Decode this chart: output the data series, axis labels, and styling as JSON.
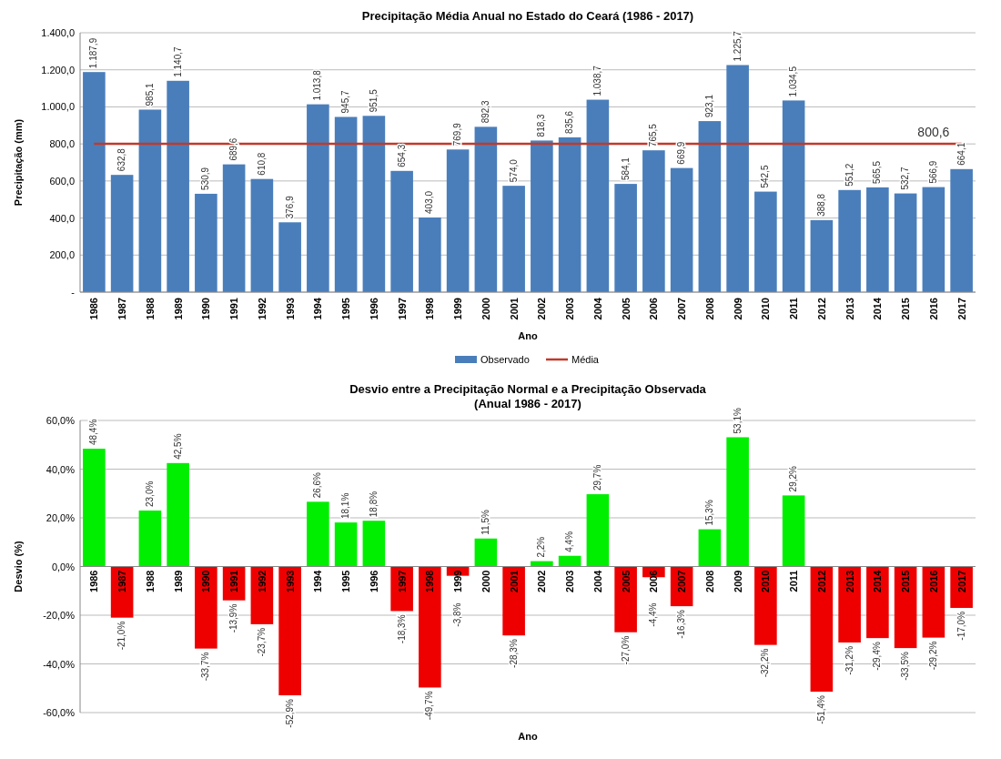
{
  "chart_data": [
    {
      "type": "bar",
      "title": "Precipitação Média Anual no Estado do Ceará (1986 - 2017)",
      "xlabel": "Ano",
      "ylabel": "Precipitação (mm)",
      "categories": [
        "1986",
        "1987",
        "1988",
        "1989",
        "1990",
        "1991",
        "1992",
        "1993",
        "1994",
        "1995",
        "1996",
        "1997",
        "1998",
        "1999",
        "2000",
        "2001",
        "2002",
        "2003",
        "2004",
        "2005",
        "2006",
        "2007",
        "2008",
        "2009",
        "2010",
        "2011",
        "2012",
        "2013",
        "2014",
        "2015",
        "2016",
        "2017"
      ],
      "series": [
        {
          "name": "Observado",
          "type": "bar",
          "color": "#4a7ebb",
          "values": [
            1187.9,
            632.8,
            985.1,
            1140.7,
            530.9,
            689.6,
            610.8,
            376.9,
            1013.8,
            945.7,
            951.5,
            654.3,
            403.0,
            769.9,
            892.3,
            574.0,
            818.3,
            835.6,
            1038.7,
            584.1,
            765.5,
            669.9,
            923.1,
            1225.7,
            542.5,
            1034.5,
            388.8,
            551.2,
            565.5,
            532.7,
            566.9,
            664.1
          ],
          "value_labels": [
            "1.187,9",
            "632,8",
            "985,1",
            "1.140,7",
            "530,9",
            "689,6",
            "610,8",
            "376,9",
            "1.013,8",
            "945,7",
            "951,5",
            "654,3",
            "403,0",
            "769,9",
            "892,3",
            "574,0",
            "818,3",
            "835,6",
            "1.038,7",
            "584,1",
            "765,5",
            "669,9",
            "923,1",
            "1.225,7",
            "542,5",
            "1.034,5",
            "388,8",
            "551,2",
            "565,5",
            "532,7",
            "566,9",
            "664,1"
          ]
        },
        {
          "name": "Média",
          "type": "line",
          "color": "#c0392b",
          "values": [
            800.6,
            800.6,
            800.6,
            800.6,
            800.6,
            800.6,
            800.6,
            800.6,
            800.6,
            800.6,
            800.6,
            800.6,
            800.6,
            800.6,
            800.6,
            800.6,
            800.6,
            800.6,
            800.6,
            800.6,
            800.6,
            800.6,
            800.6,
            800.6,
            800.6,
            800.6,
            800.6,
            800.6,
            800.6,
            800.6,
            800.6,
            800.6
          ],
          "value_labels": [
            null,
            null,
            null,
            null,
            null,
            null,
            null,
            null,
            null,
            null,
            null,
            null,
            null,
            null,
            null,
            null,
            null,
            null,
            null,
            null,
            null,
            null,
            null,
            null,
            null,
            null,
            null,
            null,
            null,
            null,
            "800,6",
            null
          ]
        }
      ],
      "ylim": [
        0,
        1400
      ],
      "yticks": [
        {
          "value": 0,
          "label": "-"
        },
        {
          "value": 200,
          "label": "200,0"
        },
        {
          "value": 400,
          "label": "400,0"
        },
        {
          "value": 600,
          "label": "600,0"
        },
        {
          "value": 800,
          "label": "800,0"
        },
        {
          "value": 1000,
          "label": "1.000,0"
        },
        {
          "value": 1200,
          "label": "1.200,0"
        },
        {
          "value": 1400,
          "label": "1.400,0"
        }
      ],
      "grid": "y",
      "legend": "bottom"
    },
    {
      "type": "bar",
      "title": "Desvio entre a Precipitação Normal e a Precipitação Observada\n(Anual 1986 - 2017)",
      "xlabel": "Ano",
      "ylabel": "Desvio (%)",
      "categories": [
        "1986",
        "1987",
        "1988",
        "1989",
        "1990",
        "1991",
        "1992",
        "1993",
        "1994",
        "1995",
        "1996",
        "1997",
        "1998",
        "1999",
        "2000",
        "2001",
        "2002",
        "2003",
        "2004",
        "2005",
        "2006",
        "2007",
        "2008",
        "2009",
        "2010",
        "2011",
        "2012",
        "2013",
        "2014",
        "2015",
        "2016",
        "2017"
      ],
      "values": [
        48.4,
        -21.0,
        23.0,
        42.5,
        -33.7,
        -13.9,
        -23.7,
        -52.9,
        26.6,
        18.1,
        18.8,
        -18.3,
        -49.7,
        -3.8,
        11.5,
        -28.3,
        2.2,
        4.4,
        29.7,
        -27.0,
        -4.4,
        -16.3,
        15.3,
        53.1,
        -32.2,
        29.2,
        -51.4,
        -31.2,
        -29.4,
        -33.5,
        -29.2,
        -17.0
      ],
      "colors": [
        "#00ee00",
        "#ee0000",
        "#00ee00",
        "#00ee00",
        "#ee0000",
        "#ee0000",
        "#ee0000",
        "#ee0000",
        "#00ee00",
        "#00ee00",
        "#00ee00",
        "#ee0000",
        "#ee0000",
        "#ee0000",
        "#00ee00",
        "#ee0000",
        "#00ee00",
        "#00ee00",
        "#00ee00",
        "#ee0000",
        "#ee0000",
        "#ee0000",
        "#00ee00",
        "#00ee00",
        "#ee0000",
        "#00ee00",
        "#ee0000",
        "#ee0000",
        "#ee0000",
        "#ee0000",
        "#ee0000",
        "#ee0000"
      ],
      "value_labels": [
        "48,4%",
        "-21,0%",
        "23,0%",
        "42,5%",
        "-33,7%",
        "-13,9%",
        "-23,7%",
        "-52,9%",
        "26,6%",
        "18,1%",
        "18,8%",
        "-18,3%",
        "-49,7%",
        "-3,8%",
        "11,5%",
        "-28,3%",
        "2,2%",
        "4,4%",
        "29,7%",
        "-27,0%",
        "-4,4%",
        "-16,3%",
        "15,3%",
        "53,1%",
        "-32,2%",
        "29,2%",
        "-51,4%",
        "-31,2%",
        "-29,4%",
        "-33,5%",
        "-29,2%",
        "-17,0%"
      ],
      "ylim": [
        -60,
        60
      ],
      "yticks": [
        {
          "value": -60,
          "label": "-60,0%"
        },
        {
          "value": -40,
          "label": "-40,0%"
        },
        {
          "value": -20,
          "label": "-20,0%"
        },
        {
          "value": 0,
          "label": "0,0%"
        },
        {
          "value": 20,
          "label": "20,0%"
        },
        {
          "value": 40,
          "label": "40,0%"
        },
        {
          "value": 60,
          "label": "60,0%"
        }
      ],
      "grid": "y"
    }
  ]
}
